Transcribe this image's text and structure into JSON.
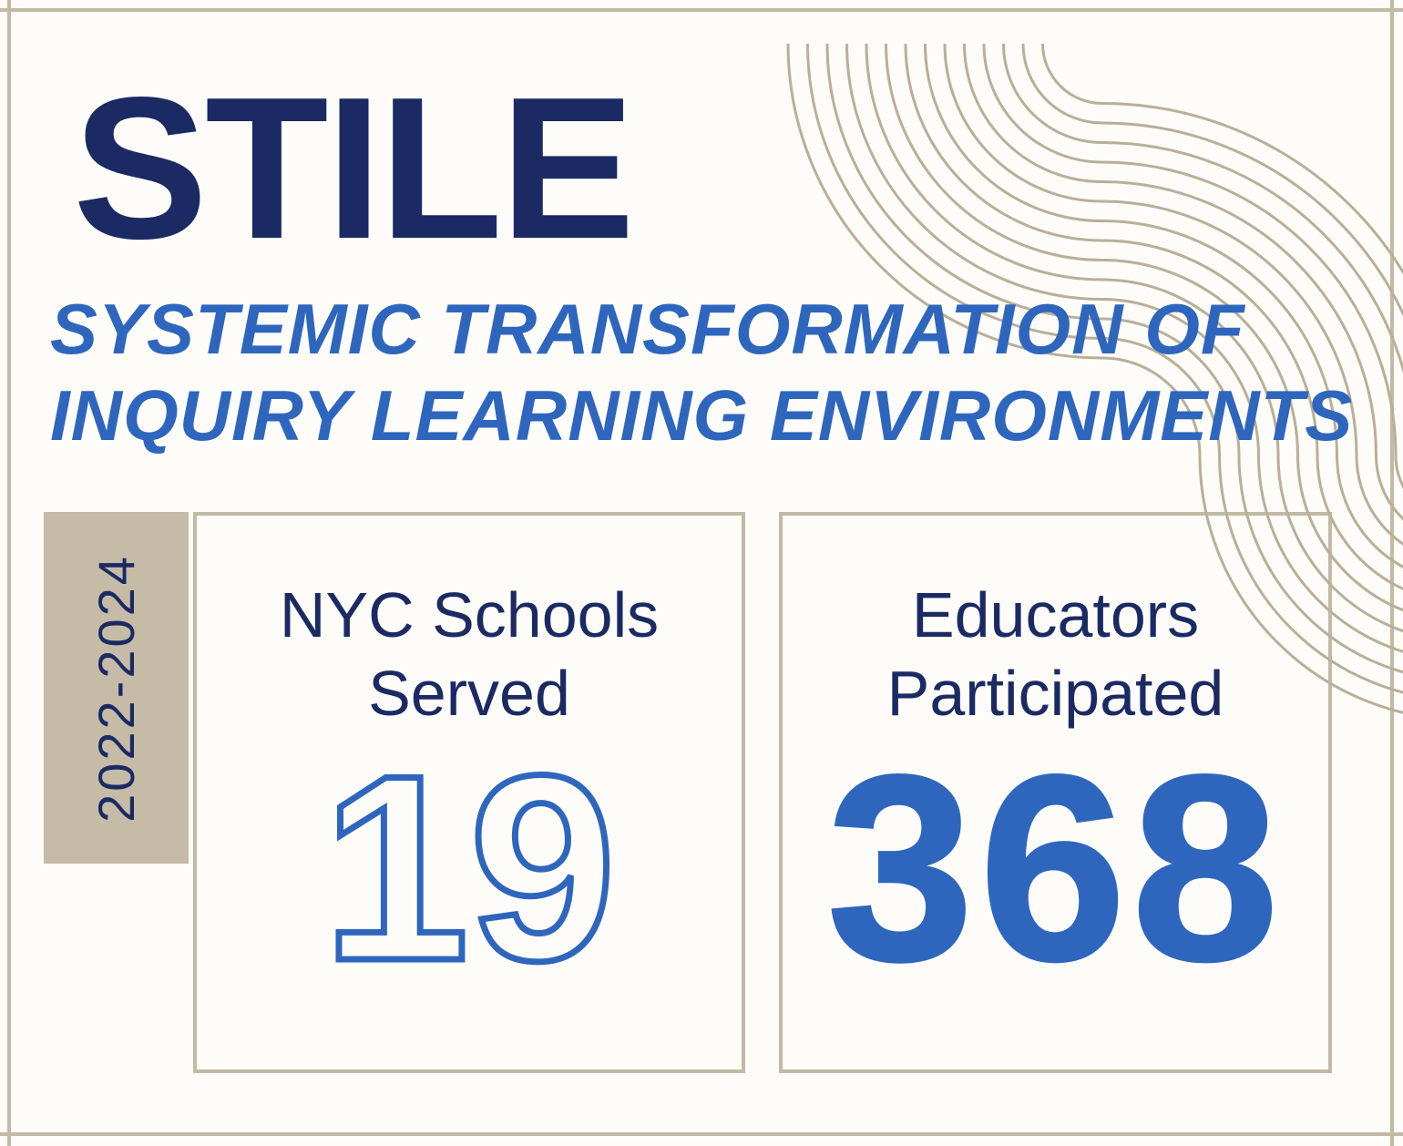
{
  "theme": {
    "background": "#fdfcf9",
    "navy": "#1b2a63",
    "blue": "#2f66bd",
    "tan_border": "#c3b9a4",
    "tan_fill": "#c5bba6",
    "wave_line": "#b9af98"
  },
  "header": {
    "title": "STILE",
    "subtitle_line1": "SYSTEMIC TRANSFORMATION OF",
    "subtitle_line2": "INQUIRY LEARNING ENVIRONMENTS"
  },
  "period_badge": {
    "label": "2022-2024"
  },
  "stats": [
    {
      "label_line1": "NYC Schools",
      "label_line2": "Served",
      "value": "19",
      "style": "outline"
    },
    {
      "label_line1": "Educators",
      "label_line2": "Participated",
      "value": "368",
      "style": "solid"
    }
  ]
}
